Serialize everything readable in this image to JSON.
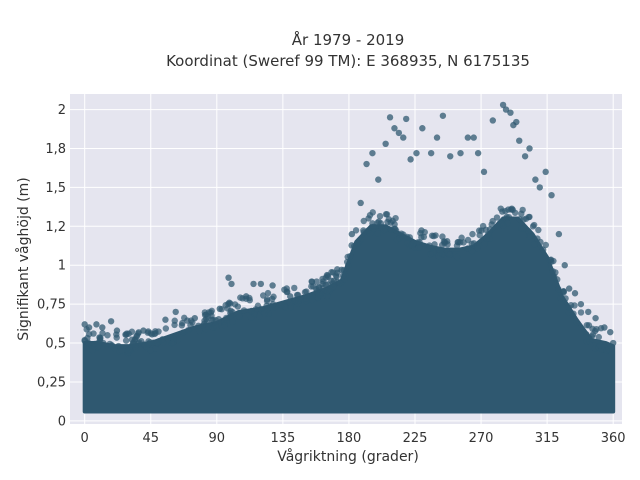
{
  "chart_data": {
    "type": "scatter",
    "title": "År 1979 - 2019",
    "subtitle": "Koordinat (Sweref 99 TM): E 368935, N 6175135",
    "xlabel": "Vågriktning (grader)",
    "ylabel": "Signifikant våghöjd (m)",
    "xlim": [
      -10,
      366
    ],
    "ylim": [
      -0.02,
      2.1
    ],
    "x_ticks": [
      0,
      45,
      90,
      135,
      180,
      225,
      270,
      315,
      360
    ],
    "x_tick_labels": [
      "0",
      "45",
      "90",
      "135",
      "180",
      "225",
      "270",
      "315",
      "360"
    ],
    "y_ticks": [
      0,
      0.25,
      0.5,
      0.75,
      1,
      1.25,
      1.5,
      1.75,
      2
    ],
    "y_tick_labels": [
      "0",
      "0,25",
      "0,5",
      "0,75",
      "1",
      "1,2",
      "1,5",
      "1,8",
      "2"
    ],
    "grid": true,
    "background": "#e5e5ef",
    "marker_color": "#2f5870",
    "density_envelope": {
      "direction": [
        0,
        10,
        20,
        30,
        45,
        60,
        75,
        90,
        105,
        120,
        135,
        150,
        165,
        175,
        185,
        195,
        205,
        215,
        225,
        235,
        245,
        255,
        265,
        275,
        285,
        295,
        305,
        315,
        325,
        335,
        345,
        355,
        360
      ],
      "lower": [
        0.06,
        0.06,
        0.06,
        0.06,
        0.06,
        0.06,
        0.06,
        0.06,
        0.06,
        0.06,
        0.06,
        0.06,
        0.06,
        0.06,
        0.06,
        0.06,
        0.06,
        0.06,
        0.06,
        0.06,
        0.06,
        0.06,
        0.06,
        0.06,
        0.06,
        0.06,
        0.06,
        0.06,
        0.06,
        0.06,
        0.06,
        0.06,
        0.06
      ],
      "upper": [
        0.5,
        0.5,
        0.48,
        0.48,
        0.5,
        0.55,
        0.6,
        0.63,
        0.7,
        0.72,
        0.76,
        0.8,
        0.85,
        0.9,
        1.15,
        1.25,
        1.25,
        1.2,
        1.15,
        1.12,
        1.1,
        1.1,
        1.12,
        1.2,
        1.3,
        1.3,
        1.2,
        1.05,
        0.8,
        0.65,
        0.52,
        0.5,
        0.48
      ]
    },
    "outliers": [
      {
        "x": 0,
        "y": 0.62
      },
      {
        "x": 3,
        "y": 0.6
      },
      {
        "x": 8,
        "y": 0.62
      },
      {
        "x": 12,
        "y": 0.6
      },
      {
        "x": 18,
        "y": 0.64
      },
      {
        "x": 22,
        "y": 0.58
      },
      {
        "x": 30,
        "y": 0.56
      },
      {
        "x": 40,
        "y": 0.58
      },
      {
        "x": 55,
        "y": 0.65
      },
      {
        "x": 62,
        "y": 0.7
      },
      {
        "x": 75,
        "y": 0.66
      },
      {
        "x": 82,
        "y": 0.68
      },
      {
        "x": 92,
        "y": 0.72
      },
      {
        "x": 98,
        "y": 0.92
      },
      {
        "x": 100,
        "y": 0.88
      },
      {
        "x": 110,
        "y": 0.8
      },
      {
        "x": 115,
        "y": 0.88
      },
      {
        "x": 120,
        "y": 0.88
      },
      {
        "x": 128,
        "y": 0.87
      },
      {
        "x": 140,
        "y": 0.8
      },
      {
        "x": 155,
        "y": 0.8
      },
      {
        "x": 162,
        "y": 0.88
      },
      {
        "x": 168,
        "y": 0.9
      },
      {
        "x": 175,
        "y": 0.97
      },
      {
        "x": 182,
        "y": 1.2
      },
      {
        "x": 188,
        "y": 1.4
      },
      {
        "x": 192,
        "y": 1.65
      },
      {
        "x": 196,
        "y": 1.72
      },
      {
        "x": 200,
        "y": 1.55
      },
      {
        "x": 205,
        "y": 1.78
      },
      {
        "x": 208,
        "y": 1.95
      },
      {
        "x": 211,
        "y": 1.88
      },
      {
        "x": 214,
        "y": 1.85
      },
      {
        "x": 217,
        "y": 1.82
      },
      {
        "x": 219,
        "y": 1.94
      },
      {
        "x": 222,
        "y": 1.68
      },
      {
        "x": 226,
        "y": 1.72
      },
      {
        "x": 230,
        "y": 1.88
      },
      {
        "x": 236,
        "y": 1.72
      },
      {
        "x": 240,
        "y": 1.82
      },
      {
        "x": 244,
        "y": 1.96
      },
      {
        "x": 249,
        "y": 1.7
      },
      {
        "x": 256,
        "y": 1.72
      },
      {
        "x": 261,
        "y": 1.82
      },
      {
        "x": 265,
        "y": 1.82
      },
      {
        "x": 268,
        "y": 1.72
      },
      {
        "x": 272,
        "y": 1.6
      },
      {
        "x": 278,
        "y": 1.93
      },
      {
        "x": 285,
        "y": 2.03
      },
      {
        "x": 287,
        "y": 2.0
      },
      {
        "x": 290,
        "y": 1.98
      },
      {
        "x": 292,
        "y": 1.9
      },
      {
        "x": 294,
        "y": 1.92
      },
      {
        "x": 296,
        "y": 1.8
      },
      {
        "x": 300,
        "y": 1.7
      },
      {
        "x": 303,
        "y": 1.75
      },
      {
        "x": 307,
        "y": 1.55
      },
      {
        "x": 310,
        "y": 1.5
      },
      {
        "x": 314,
        "y": 1.6
      },
      {
        "x": 318,
        "y": 1.45
      },
      {
        "x": 323,
        "y": 1.2
      },
      {
        "x": 327,
        "y": 1.0
      },
      {
        "x": 330,
        "y": 0.85
      },
      {
        "x": 334,
        "y": 0.82
      },
      {
        "x": 338,
        "y": 0.75
      },
      {
        "x": 343,
        "y": 0.7
      },
      {
        "x": 348,
        "y": 0.66
      },
      {
        "x": 354,
        "y": 0.6
      },
      {
        "x": 358,
        "y": 0.57
      },
      {
        "x": 360,
        "y": 0.5
      }
    ]
  }
}
